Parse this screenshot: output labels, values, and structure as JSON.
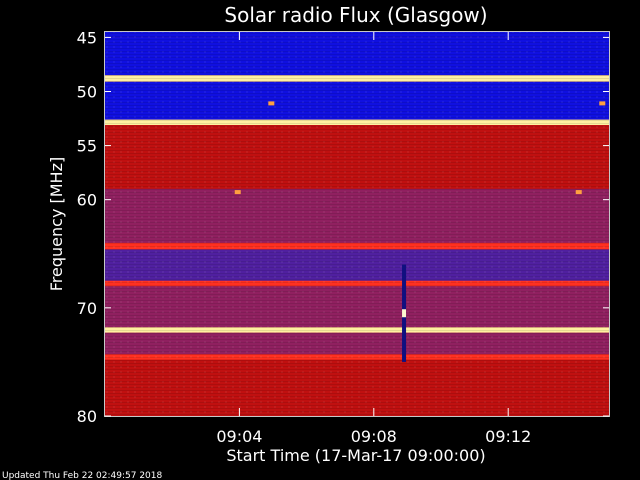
{
  "chart_data": {
    "type": "heatmap",
    "title": "Solar radio Flux (Glasgow)",
    "xlabel": "Start Time (17-Mar-17 09:00:00)",
    "ylabel": "Frequency [MHz]",
    "x_unit": "minutes after 09:00:00",
    "xlim": [
      0,
      15
    ],
    "ylim": [
      44.5,
      80
    ],
    "y_inverted": true,
    "x_ticks": [
      {
        "value": 4,
        "label": "09:04"
      },
      {
        "value": 8,
        "label": "09:08"
      },
      {
        "value": 12,
        "label": "09:12"
      }
    ],
    "y_ticks": [
      {
        "value": 45,
        "label": "45"
      },
      {
        "value": 50,
        "label": "50"
      },
      {
        "value": 55,
        "label": "55"
      },
      {
        "value": 60,
        "label": "60"
      },
      {
        "value": 70,
        "label": "70"
      },
      {
        "value": 80,
        "label": "80"
      }
    ],
    "bands": [
      {
        "from": 44.5,
        "to": 45.0,
        "level": "low"
      },
      {
        "from": 45.0,
        "to": 48.5,
        "level": "low"
      },
      {
        "from": 48.5,
        "to": 49.1,
        "level": "high"
      },
      {
        "from": 49.1,
        "to": 52.6,
        "level": "low"
      },
      {
        "from": 52.6,
        "to": 53.1,
        "level": "high"
      },
      {
        "from": 53.1,
        "to": 59.0,
        "level": "medium"
      },
      {
        "from": 59.0,
        "to": 64.0,
        "level": "medium-low"
      },
      {
        "from": 64.0,
        "to": 64.6,
        "level": "medium-high"
      },
      {
        "from": 64.6,
        "to": 67.5,
        "level": "low-medium"
      },
      {
        "from": 67.5,
        "to": 68.0,
        "level": "medium-high"
      },
      {
        "from": 68.0,
        "to": 71.8,
        "level": "medium-low"
      },
      {
        "from": 71.8,
        "to": 72.3,
        "level": "high"
      },
      {
        "from": 72.3,
        "to": 74.3,
        "level": "medium-low"
      },
      {
        "from": 74.3,
        "to": 74.8,
        "level": "medium-high"
      },
      {
        "from": 74.8,
        "to": 80.0,
        "level": "medium"
      }
    ],
    "features": [
      {
        "type": "burst",
        "time": 8.9,
        "freq_from": 66.0,
        "freq_to": 75.0
      },
      {
        "type": "blip",
        "time": 3.95,
        "freq": 59.3
      },
      {
        "type": "blip",
        "time": 14.1,
        "freq": 59.3
      },
      {
        "type": "blip",
        "time": 4.95,
        "freq": 51.1
      },
      {
        "type": "blip",
        "time": 14.8,
        "freq": 51.1
      }
    ],
    "colors": {
      "low": "#1010e0",
      "low-medium": "#5020a0",
      "medium-low": "#902060",
      "medium": "#c01010",
      "medium-high": "#ff3020",
      "high": "#fff0a0",
      "background": "#000000",
      "text": "#ffffff"
    }
  },
  "footer": {
    "updated": "Updated Thu Feb 22 02:49:57 2018"
  }
}
